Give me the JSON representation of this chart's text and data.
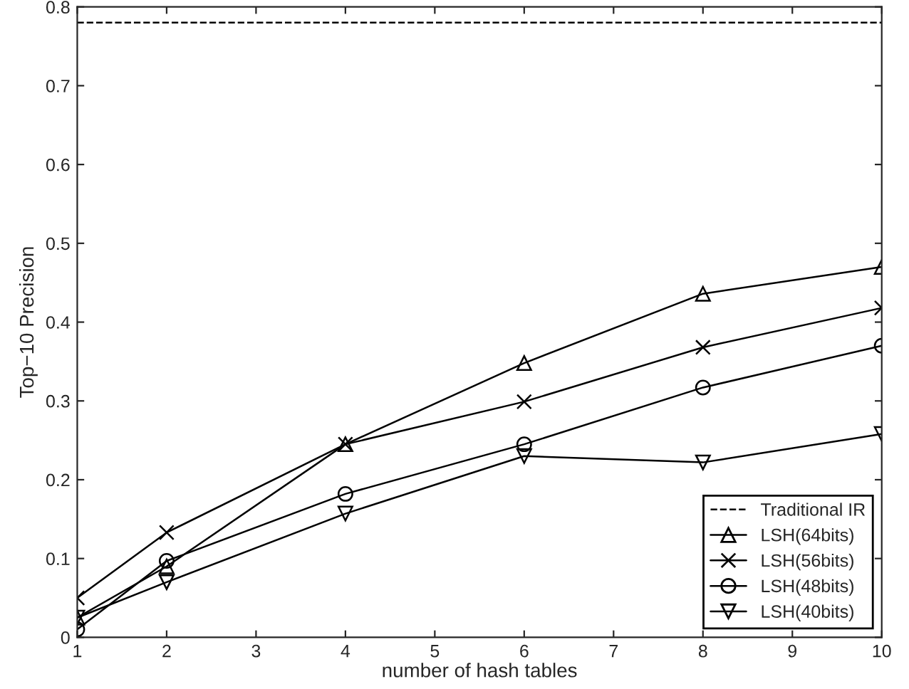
{
  "chart_data": {
    "type": "line",
    "xlabel": "number of hash tables",
    "ylabel": "Top−10 Precision",
    "x": [
      1,
      2,
      4,
      6,
      8,
      10
    ],
    "series": [
      {
        "name": "LSH(64bits)",
        "color": "#000000",
        "marker": "triangle",
        "values": [
          0.025,
          0.09,
          0.245,
          0.348,
          0.436,
          0.47
        ]
      },
      {
        "name": "LSH(56bits)",
        "color": "#000000",
        "marker": "cross",
        "values": [
          0.05,
          0.133,
          0.245,
          0.299,
          0.368,
          0.418
        ]
      },
      {
        "name": "LSH(48bits)",
        "color": "#000000",
        "marker": "circle",
        "values": [
          0.01,
          0.097,
          0.182,
          0.245,
          0.317,
          0.37
        ]
      },
      {
        "name": "LSH(40bits)",
        "color": "#000000",
        "marker": "triangle_down",
        "values": [
          0.025,
          0.07,
          0.157,
          0.23,
          0.222,
          0.258
        ]
      }
    ],
    "ref_lines": [
      {
        "axis": "y",
        "value": 0.78,
        "label": "Traditional IR",
        "color": "#000000",
        "line_style": "dashed"
      }
    ],
    "xlim": [
      1,
      10
    ],
    "xticks": [
      1,
      2,
      3,
      4,
      5,
      6,
      7,
      8,
      9,
      10
    ],
    "ylim": [
      0,
      0.8
    ],
    "yticks": [
      0,
      0.1,
      0.2,
      0.3,
      0.4,
      0.5,
      0.6,
      0.7,
      0.8
    ],
    "grid": false,
    "legend": "bottom right",
    "line_style": "solid"
  }
}
